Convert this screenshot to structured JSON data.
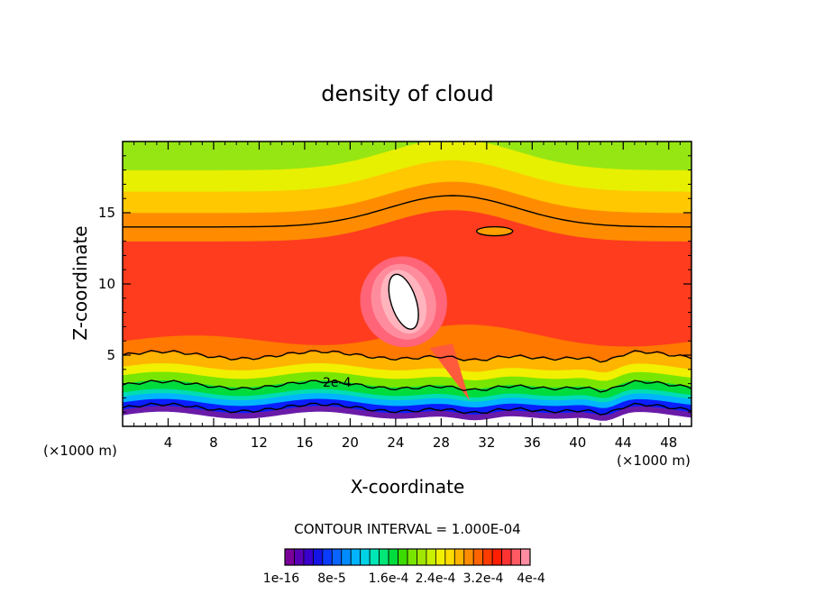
{
  "chart_data": {
    "type": "heatmap",
    "title": "density of cloud",
    "xlabel": "X-coordinate",
    "ylabel": "Z-coordinate",
    "x_unit": "(×1000 m)",
    "y_unit": "(×1000 m)",
    "xlim": [
      0,
      50
    ],
    "ylim": [
      0,
      20
    ],
    "x_ticks": [
      "4",
      "8",
      "12",
      "16",
      "20",
      "24",
      "28",
      "32",
      "36",
      "40",
      "44",
      "48"
    ],
    "y_ticks": [
      "5",
      "10",
      "15"
    ],
    "contour_interval_text": "CONTOUR INTERVAL = 1.000E-04",
    "contour_label": "2e-4",
    "colorbar_labels": [
      "1e-16",
      "8e-5",
      "1.6e-4",
      "2.4e-4",
      "3.2e-4",
      "4e-4"
    ],
    "colorbar_colors": [
      "#7a0099",
      "#5a00b4",
      "#3a00cc",
      "#1414e6",
      "#0a3cff",
      "#0a64ff",
      "#008cff",
      "#00b4ff",
      "#00d2e6",
      "#00e6b4",
      "#00e678",
      "#00dc3c",
      "#3cdc00",
      "#78e600",
      "#a0e600",
      "#c8f000",
      "#f0f000",
      "#ffdc00",
      "#ffb400",
      "#ff8c00",
      "#ff6400",
      "#ff3c00",
      "#ff1e00",
      "#ff3232",
      "#ff5a64",
      "#ff8ca0"
    ],
    "band_levels": [
      {
        "z_min": 0.8,
        "z_max": 1.2,
        "color": "#6a1aa8"
      },
      {
        "z_min": 1.2,
        "z_max": 1.7,
        "color": "#0a1eff"
      },
      {
        "z_min": 1.7,
        "z_max": 2.1,
        "color": "#00b4ff"
      },
      {
        "z_min": 2.1,
        "z_max": 2.4,
        "color": "#00dcb4"
      },
      {
        "z_min": 2.4,
        "z_max": 3.0,
        "color": "#00dc3c"
      },
      {
        "z_min": 3.0,
        "z_max": 3.6,
        "color": "#78e600"
      },
      {
        "z_min": 3.6,
        "z_max": 4.2,
        "color": "#f0f000"
      },
      {
        "z_min": 4.2,
        "z_max": 5.0,
        "color": "#ffb400"
      },
      {
        "z_min": 5.0,
        "z_max": 6.0,
        "color": "#ff7800"
      },
      {
        "z_min": 6.0,
        "z_max": 13.0,
        "color": "#ff3c1e"
      },
      {
        "z_min": 13.0,
        "z_max": 15.0,
        "color": "#ff8c00"
      },
      {
        "z_min": 15.0,
        "z_max": 16.5,
        "color": "#ffc800"
      },
      {
        "z_min": 16.5,
        "z_max": 18.0,
        "color": "#e6f000"
      },
      {
        "z_min": 18.0,
        "z_max": 20.0,
        "color": "#96e614"
      }
    ],
    "core_feature": {
      "x": [
        22.5,
        28.5
      ],
      "z": [
        6.0,
        11.5
      ],
      "peak_value": "4e-4"
    },
    "grid": false
  }
}
